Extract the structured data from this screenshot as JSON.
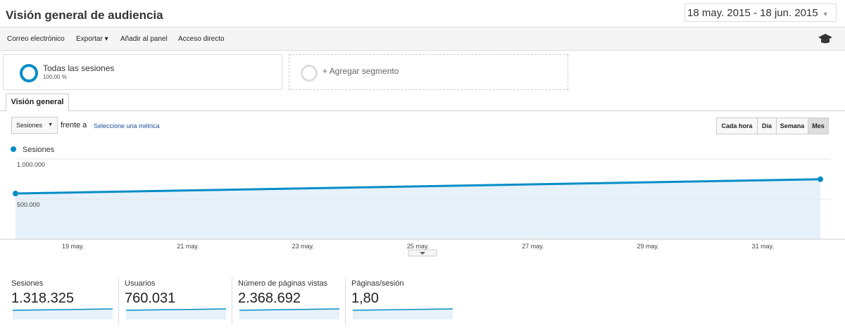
{
  "header": {
    "title": "Visión general de audiencia",
    "date_range": "18 may. 2015 - 18 jun. 2015"
  },
  "toolbar": {
    "items": [
      "Correo electrónico",
      "Exportar",
      "Añadir al panel",
      "Acceso directo"
    ]
  },
  "segments": {
    "active": {
      "name": "Todas las sesiones",
      "share": "100,00 %"
    },
    "add": "+ Agregar segmento"
  },
  "tab": "Visión general",
  "controls": {
    "metric": "Sesiones",
    "versus": "frente a",
    "select_metric": "Seleccione una métrica",
    "granularity": [
      "Cada hora",
      "Día",
      "Semana",
      "Mes"
    ],
    "active_granularity": 3
  },
  "chart": {
    "type": "line",
    "series": [
      {
        "name": "Sesiones",
        "color": "#058dc7",
        "x": [
          18,
          32
        ],
        "values": [
          570000,
          748000
        ]
      }
    ],
    "xlim": [
      18,
      32
    ],
    "xticks": [
      {
        "value": 19,
        "label": "19 may."
      },
      {
        "value": 21,
        "label": "21 may."
      },
      {
        "value": 23,
        "label": "23 may."
      },
      {
        "value": 25,
        "label": "25 may."
      },
      {
        "value": 27,
        "label": "27 may."
      },
      {
        "value": 29,
        "label": "29 may."
      },
      {
        "value": 31,
        "label": "31 may."
      }
    ],
    "ylim": [
      0,
      1000000
    ],
    "yticks": [
      {
        "value": 1000000,
        "label": "1.000.000"
      },
      {
        "value": 500000,
        "label": "500.000"
      }
    ],
    "grid": true
  },
  "metrics": [
    {
      "label": "Sesiones",
      "value": "1.318.325"
    },
    {
      "label": "Usuarios",
      "value": "760.031"
    },
    {
      "label": "Número de páginas vistas",
      "value": "2.368.692"
    },
    {
      "label": "Páginas/sesión",
      "value": "1,80"
    }
  ]
}
